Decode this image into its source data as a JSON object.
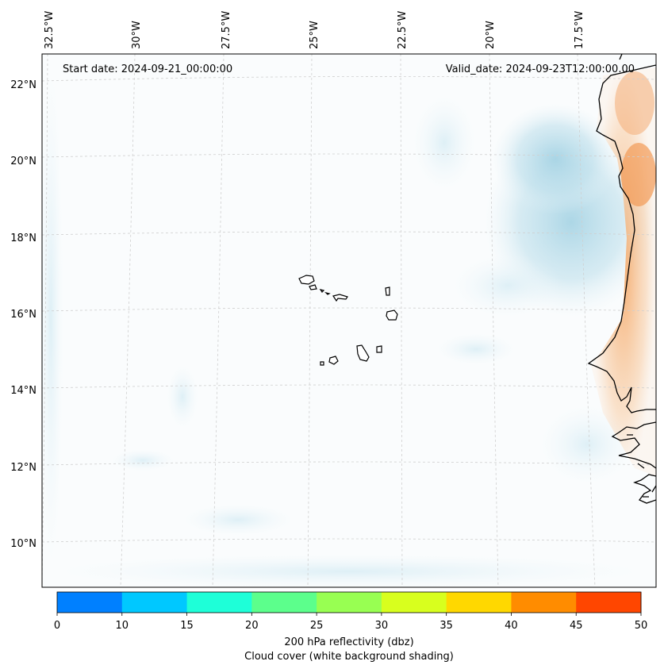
{
  "map": {
    "start_date": "Start date: 2024-09-21_00:00:00",
    "valid_date": "Valid_date: 2024-09-23T12:00:00.00",
    "lon_labels": [
      "32.5°W",
      "30°W",
      "27.5°W",
      "25°W",
      "22.5°W",
      "20°W",
      "17.5°W"
    ],
    "lat_labels": [
      "22°N",
      "20°N",
      "18°N",
      "16°N",
      "14°N",
      "12°N",
      "10°N"
    ],
    "features": [
      "Cape Verde islands",
      "West African coastline"
    ],
    "colors": {
      "cloud_shading": "#add8e6",
      "warm_shading": "#f7b27a",
      "coastline": "#000000",
      "gridline": "#cccccc"
    }
  },
  "colorbar": {
    "ticks": [
      "0",
      "10",
      "15",
      "20",
      "25",
      "30",
      "35",
      "40",
      "45",
      "50"
    ],
    "colors": [
      "#0080ff",
      "#00c8ff",
      "#1effd8",
      "#5cff8c",
      "#98ff52",
      "#d8ff1e",
      "#ffd800",
      "#ff8c00",
      "#ff4600"
    ],
    "label_line1": "200 hPa reflectivity (dbz)",
    "label_line2": "Cloud cover (white background shading)"
  }
}
